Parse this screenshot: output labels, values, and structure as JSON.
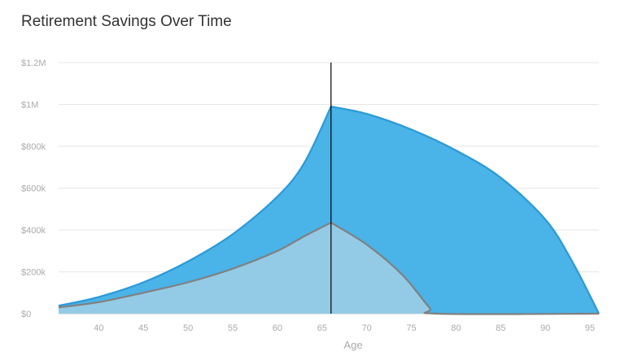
{
  "chart_data": {
    "type": "area",
    "title": "Retirement Savings Over Time",
    "xlabel": "Age",
    "ylabel": "",
    "xlim": [
      35.5,
      96
    ],
    "ylim": [
      0,
      1200000
    ],
    "x_ticks": [
      40,
      45,
      50,
      55,
      60,
      65,
      70,
      75,
      80,
      85,
      90,
      95
    ],
    "y_ticks": [
      {
        "value": 0,
        "label": "$0"
      },
      {
        "value": 200000,
        "label": "$200k"
      },
      {
        "value": 400000,
        "label": "$400k"
      },
      {
        "value": 600000,
        "label": "$600k"
      },
      {
        "value": 800000,
        "label": "$800k"
      },
      {
        "value": 1000000,
        "label": "$1M"
      },
      {
        "value": 1200000,
        "label": "$1.2M"
      }
    ],
    "grid": true,
    "marker_line_x": 66,
    "series": [
      {
        "color": "#4ab3e8",
        "stroke": "#2a9ad8",
        "points": [
          [
            35.5,
            38000
          ],
          [
            40,
            80000
          ],
          [
            45,
            150000
          ],
          [
            50,
            250000
          ],
          [
            55,
            380000
          ],
          [
            60,
            560000
          ],
          [
            63,
            720000
          ],
          [
            66,
            990000
          ],
          [
            70,
            955000
          ],
          [
            75,
            880000
          ],
          [
            80,
            780000
          ],
          [
            85,
            650000
          ],
          [
            90,
            450000
          ],
          [
            93,
            250000
          ],
          [
            96,
            0
          ]
        ]
      },
      {
        "color": "#93cbe6",
        "stroke": "#808080",
        "points": [
          [
            35.5,
            30000
          ],
          [
            40,
            55000
          ],
          [
            45,
            100000
          ],
          [
            50,
            150000
          ],
          [
            55,
            215000
          ],
          [
            60,
            300000
          ],
          [
            63,
            370000
          ],
          [
            66,
            435000
          ],
          [
            70,
            330000
          ],
          [
            74,
            185000
          ],
          [
            77,
            30000
          ],
          [
            78,
            0
          ],
          [
            96,
            0
          ]
        ]
      }
    ]
  }
}
